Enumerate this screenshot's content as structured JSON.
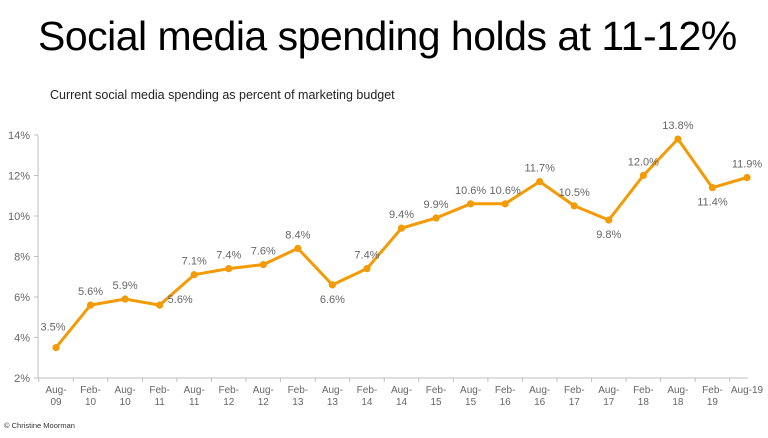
{
  "title": "Social media spending holds at 11-12%",
  "subtitle": "Current social media spending as percent of marketing budget",
  "copyright": "© Christine Moorman",
  "chart_data": {
    "type": "line",
    "title": "Social media spending holds at 11-12%",
    "subtitle": "Current social media spending as percent of marketing budget",
    "xlabel": "",
    "ylabel": "",
    "categories": [
      [
        "Aug-",
        "09"
      ],
      [
        "Feb-",
        "10"
      ],
      [
        "Aug-",
        "10"
      ],
      [
        "Feb-",
        "11"
      ],
      [
        "Aug-",
        "11"
      ],
      [
        "Feb-",
        "12"
      ],
      [
        "Aug-",
        "12"
      ],
      [
        "Feb-",
        "13"
      ],
      [
        "Aug-",
        "13"
      ],
      [
        "Feb-",
        "14"
      ],
      [
        "Aug-",
        "14"
      ],
      [
        "Feb-",
        "15"
      ],
      [
        "Aug-",
        "15"
      ],
      [
        "Feb-",
        "16"
      ],
      [
        "Aug-",
        "16"
      ],
      [
        "Feb-",
        "17"
      ],
      [
        "Aug-",
        "17"
      ],
      [
        "Feb-",
        "18"
      ],
      [
        "Aug-",
        "18"
      ],
      [
        "Feb-",
        "19"
      ],
      [
        "Aug-19"
      ]
    ],
    "values": [
      3.5,
      5.6,
      5.9,
      5.6,
      7.1,
      7.4,
      7.6,
      8.4,
      6.6,
      7.4,
      9.4,
      9.9,
      10.6,
      10.6,
      11.7,
      10.5,
      9.8,
      12.0,
      13.8,
      11.4,
      11.9
    ],
    "data_labels": [
      "3.5%",
      "5.6%",
      "5.9%",
      "5.6%",
      "7.1%",
      "7.4%",
      "7.6%",
      "8.4%",
      "6.6%",
      "7.4%",
      "9.4%",
      "9.9%",
      "10.6%",
      "10.6%",
      "11.7%",
      "10.5%",
      "9.8%",
      "12.0%",
      "13.8%",
      "11.4%",
      "11.9%"
    ],
    "label_side": [
      "above",
      "above",
      "above",
      "right",
      "above",
      "above",
      "above",
      "above",
      "below",
      "above",
      "above",
      "above",
      "above",
      "above",
      "above",
      "above",
      "below",
      "above",
      "above",
      "below",
      "above"
    ],
    "y_ticks": [
      2,
      4,
      6,
      8,
      10,
      12,
      14
    ],
    "y_tick_labels": [
      "2%",
      "4%",
      "6%",
      "8%",
      "10%",
      "12%",
      "14%"
    ],
    "ylim": [
      2,
      14
    ],
    "grid": false,
    "legend": "none",
    "colors": {
      "line": "#F29B05",
      "axis": "#BFBFBF",
      "text": "#666666"
    }
  }
}
